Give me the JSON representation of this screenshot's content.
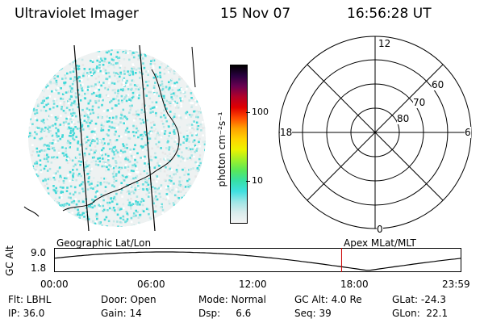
{
  "header": {
    "title": "Ultraviolet Imager",
    "date": "15 Nov 07",
    "time": "16:56:28 UT"
  },
  "colorbar": {
    "unit_label": "photon cm⁻²s⁻¹",
    "ticks": [
      {
        "value": 100,
        "label": "100"
      },
      {
        "value": 10,
        "label": "10"
      }
    ],
    "range": [
      2.5,
      500
    ],
    "colors": [
      "#f4f4f4",
      "#d8ecec",
      "#9ee6e6",
      "#3fe0e0",
      "#36e0a6",
      "#59e85a",
      "#9ff02a",
      "#eef200",
      "#ffd300",
      "#ffa200",
      "#ff4a00",
      "#e00000",
      "#b20028",
      "#6a0050",
      "#2a0040",
      "#000000"
    ]
  },
  "polar": {
    "mlt_labels": {
      "top": "12",
      "left": "18",
      "right": "6",
      "bottom": "0"
    },
    "lat_labels": [
      "60",
      "70",
      "80"
    ]
  },
  "map_labels": {
    "left": "Geographic Lat/Lon",
    "right": "Apex MLat/MLT"
  },
  "alt_plot": {
    "ylabel": "GC Alt",
    "yticks": [
      "9.0",
      "1.8"
    ],
    "xticks": [
      "00:00",
      "06:00",
      "12:00",
      "18:00",
      "23:59"
    ],
    "marker_hour": 16.94,
    "marker_color": "#cc0000"
  },
  "info": {
    "row1": [
      "Flt: LBHL",
      "Door: Open",
      "Mode: Normal",
      "GC Alt: 4.0 Re",
      "GLat: -24.3"
    ],
    "row2": [
      "IP: 36.0",
      "Gain: 14",
      "Dsp:     6.6",
      "Seq: 39",
      "GLon:  22.1"
    ]
  }
}
